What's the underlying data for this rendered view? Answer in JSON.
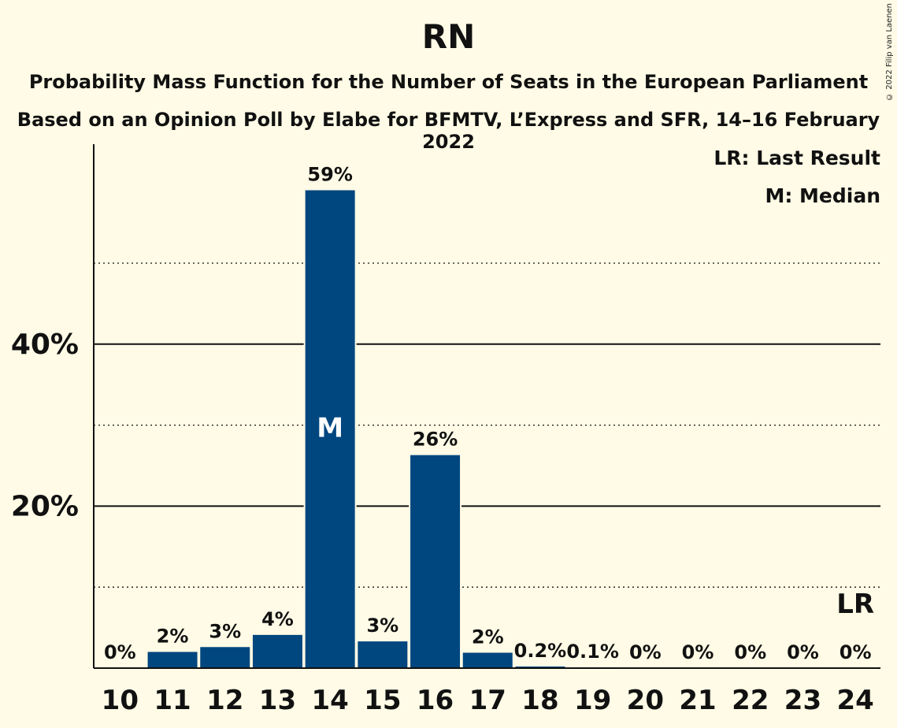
{
  "title": "RN",
  "subtitle1": "Probability Mass Function for the Number of Seats in the European Parliament",
  "subtitle2": "Based on an Opinion Poll by Elabe for BFMTV, L’Express and SFR, 14–16 February 2022",
  "copyright": "© 2022 Filip van Laenen",
  "legend": {
    "lr": "LR: Last Result",
    "m": "M: Median"
  },
  "colors": {
    "bar": "#00467f",
    "background": "#fffbe6"
  },
  "chart_data": {
    "type": "bar",
    "categories": [
      "10",
      "11",
      "12",
      "13",
      "14",
      "15",
      "16",
      "17",
      "18",
      "19",
      "20",
      "21",
      "22",
      "23",
      "24"
    ],
    "values": [
      0,
      2,
      2.6,
      4.1,
      59,
      3.3,
      26.3,
      1.9,
      0.2,
      0.1,
      0,
      0,
      0,
      0,
      0
    ],
    "data_labels": [
      "0%",
      "2%",
      "3%",
      "4%",
      "59%",
      "3%",
      "26%",
      "2%",
      "0.2%",
      "0.1%",
      "0%",
      "0%",
      "0%",
      "0%",
      "0%"
    ],
    "ylim": [
      0,
      65
    ],
    "yticks": [
      {
        "value": 20,
        "label": "20%"
      },
      {
        "value": 40,
        "label": "40%"
      }
    ],
    "minor_gridlines": [
      10,
      30,
      50
    ],
    "median": "14",
    "median_label": "M",
    "last_result": "24",
    "last_result_label": "LR"
  }
}
